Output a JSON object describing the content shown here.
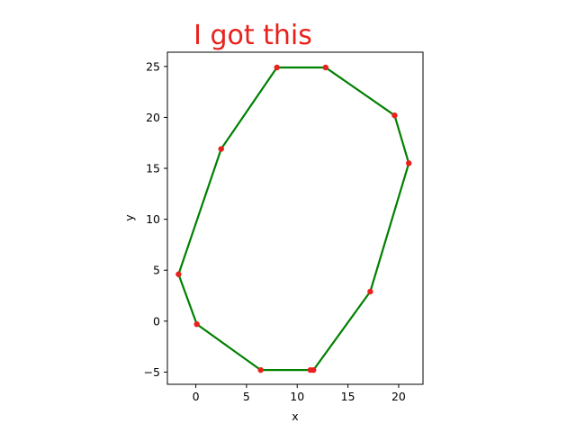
{
  "chart_data": {
    "type": "line",
    "title": "I got this",
    "title_color": "#e8211c",
    "xlabel": "x",
    "ylabel": "y",
    "xlim": [
      -2.8,
      22.4
    ],
    "ylim": [
      -6.2,
      26.4
    ],
    "xticks": [
      0,
      5,
      10,
      15,
      20
    ],
    "yticks": [
      -5,
      0,
      5,
      10,
      15,
      20,
      25
    ],
    "xtick_labels": [
      "0",
      "5",
      "10",
      "15",
      "20"
    ],
    "ytick_labels": [
      "−5",
      "0",
      "5",
      "10",
      "15",
      "20",
      "25"
    ],
    "line_color": "#008000",
    "marker_color": "#e8211c",
    "grid": false,
    "series": [
      {
        "closed": true,
        "x": [
          8.0,
          12.8,
          19.6,
          21.0,
          17.2,
          11.6,
          11.3,
          6.4,
          0.1,
          -1.7,
          2.5
        ],
        "y": [
          24.9,
          24.9,
          20.2,
          15.5,
          2.9,
          -4.8,
          -4.8,
          -4.8,
          -0.3,
          4.6,
          16.9
        ]
      }
    ]
  }
}
